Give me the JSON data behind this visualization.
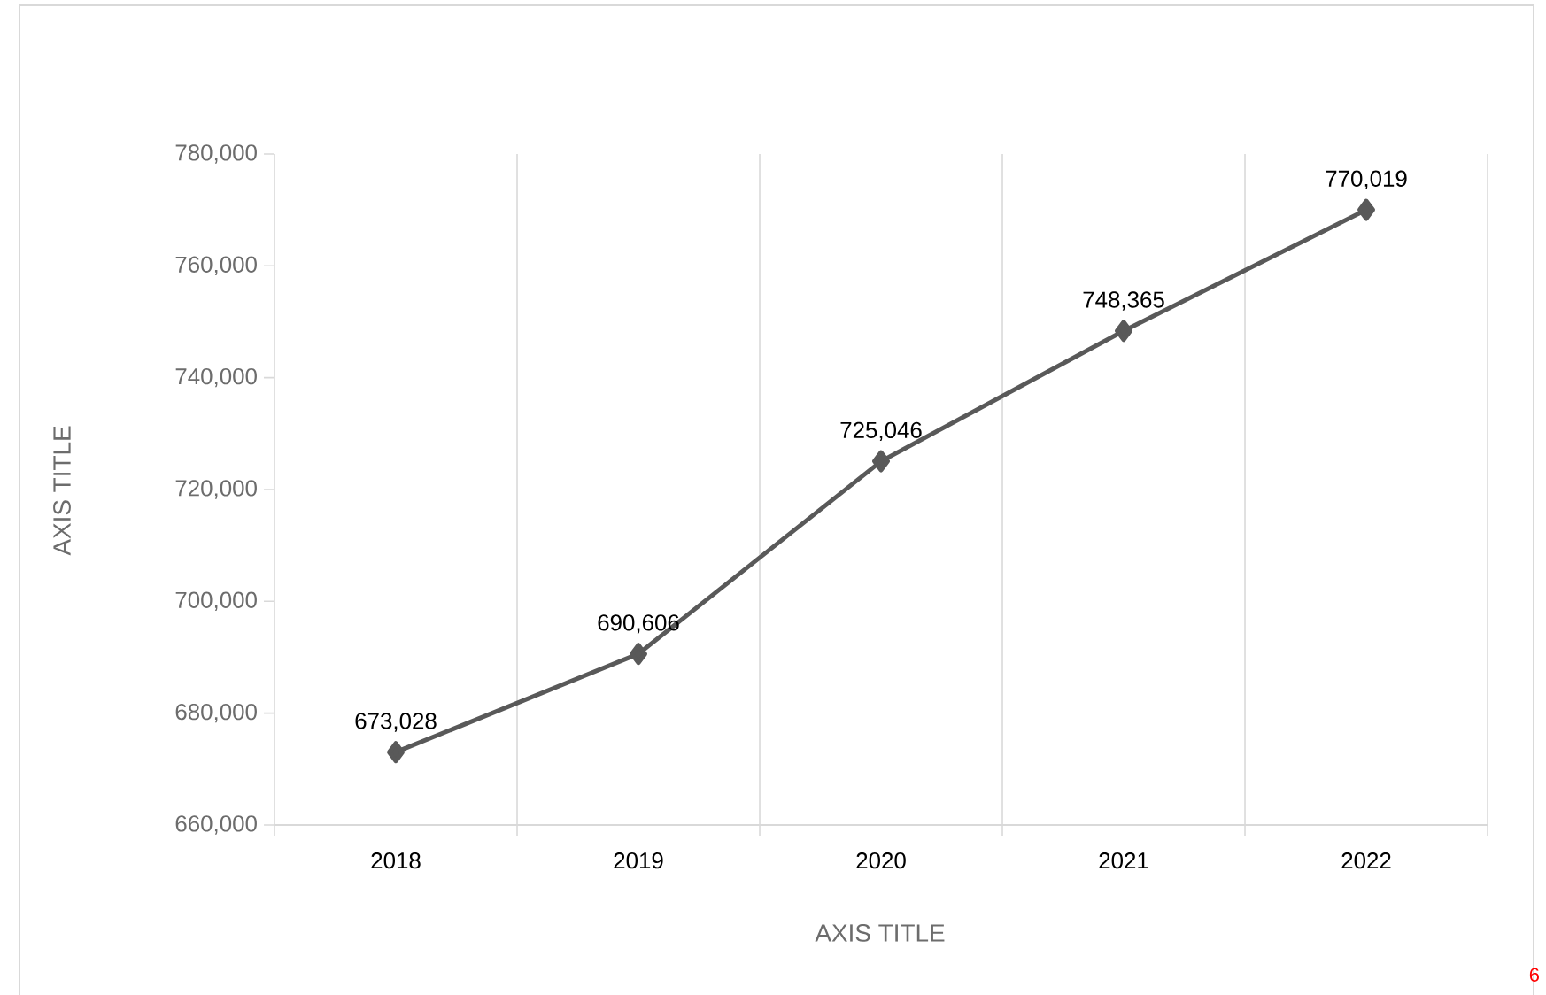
{
  "chart_data": {
    "type": "line",
    "xlabel": "AXIS TITLE",
    "ylabel": "AXIS TITLE",
    "categories": [
      "2018",
      "2019",
      "2020",
      "2021",
      "2022"
    ],
    "values": [
      673028,
      690606,
      725046,
      748365,
      770019
    ],
    "color": "#595959",
    "marker": "diamond",
    "line_style": "solid",
    "ylim": [
      660000,
      780000
    ],
    "yticks": [
      {
        "value": 660000,
        "label": "660,000"
      },
      {
        "value": 680000,
        "label": "680,000"
      },
      {
        "value": 700000,
        "label": "700,000"
      },
      {
        "value": 720000,
        "label": "720,000"
      },
      {
        "value": 740000,
        "label": "740,000"
      },
      {
        "value": 760000,
        "label": "760,000"
      },
      {
        "value": 780000,
        "label": "780,000"
      }
    ],
    "grid": "x",
    "data_labels": true,
    "value_labels": [
      "673,028",
      "690,606",
      "725,046",
      "748,365",
      "770,019"
    ],
    "annotations": [
      "6"
    ]
  }
}
